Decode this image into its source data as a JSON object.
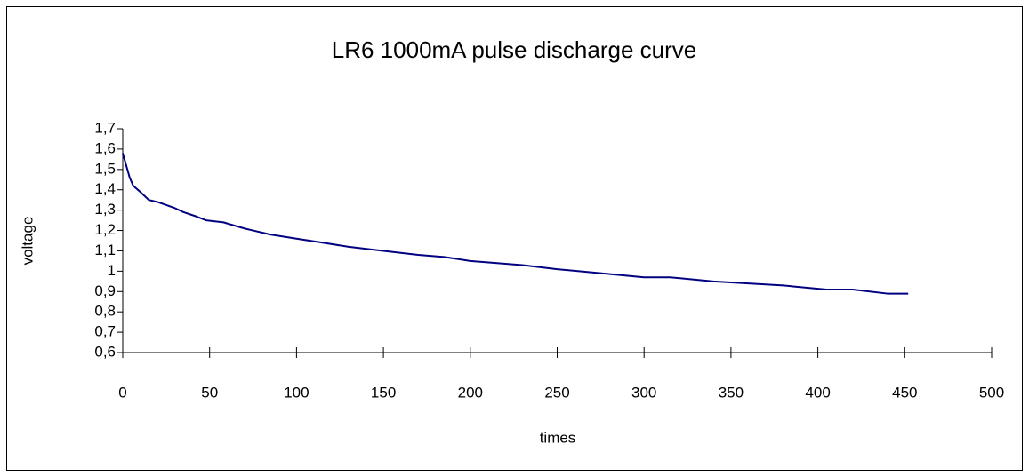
{
  "chart_data": {
    "type": "line",
    "title": "LR6 1000mA pulse discharge curve",
    "xlabel": "times",
    "ylabel": "voltage",
    "x": [
      0,
      2,
      4,
      6,
      10,
      15,
      20,
      30,
      35,
      42,
      48,
      58,
      70,
      75,
      85,
      100,
      115,
      130,
      150,
      170,
      185,
      200,
      230,
      250,
      275,
      300,
      315,
      340,
      380,
      405,
      420,
      440,
      452
    ],
    "values": [
      1.58,
      1.52,
      1.46,
      1.42,
      1.39,
      1.35,
      1.34,
      1.31,
      1.29,
      1.27,
      1.25,
      1.24,
      1.21,
      1.2,
      1.18,
      1.16,
      1.14,
      1.12,
      1.1,
      1.08,
      1.07,
      1.05,
      1.03,
      1.01,
      0.99,
      0.97,
      0.97,
      0.95,
      0.93,
      0.91,
      0.91,
      0.89,
      0.89
    ],
    "color": "#000080",
    "xlim": [
      0,
      500
    ],
    "xticks": [
      0,
      50,
      100,
      150,
      200,
      250,
      300,
      350,
      400,
      450,
      500
    ],
    "ylim": [
      0.6,
      1.7
    ],
    "yticks": [
      {
        "value": 0.6,
        "label": "0,6"
      },
      {
        "value": 0.7,
        "label": "0,7"
      },
      {
        "value": 0.8,
        "label": "0,8"
      },
      {
        "value": 0.9,
        "label": "0,9"
      },
      1,
      {
        "value": 1.1,
        "label": "1,1"
      },
      {
        "value": 1.2,
        "label": "1,2"
      },
      {
        "value": 1.3,
        "label": "1,3"
      },
      {
        "value": 1.4,
        "label": "1,4"
      },
      {
        "value": 1.5,
        "label": "1,5"
      },
      {
        "value": 1.6,
        "label": "1,6"
      },
      {
        "value": 1.7,
        "label": "1,7"
      }
    ],
    "grid": false
  }
}
